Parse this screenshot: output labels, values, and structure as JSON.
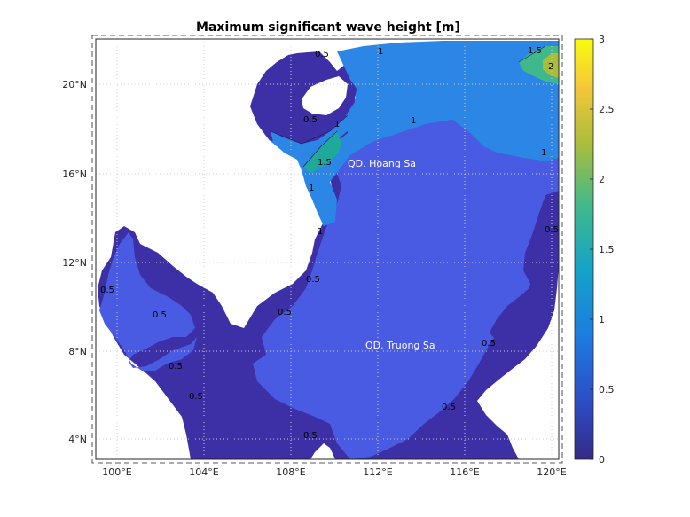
{
  "title": "Maximum significant wave height [m]",
  "map": {
    "lon_ticks": [
      "100°E",
      "104°E",
      "108°E",
      "112°E",
      "116°E",
      "120°E"
    ],
    "lat_ticks": [
      "4°N",
      "8°N",
      "12°N",
      "16°N",
      "20°N"
    ],
    "place_labels": [
      "QD. Hoang Sa",
      "QD. Truong Sa"
    ],
    "contour_labels": [
      "0.5",
      "1",
      "1.5",
      "2"
    ],
    "land_color": "#ffffff",
    "grid": "dotted"
  },
  "colorbar": {
    "ticks": [
      "0",
      "0.5",
      "1",
      "1.5",
      "2",
      "2.5",
      "3"
    ],
    "min": 0,
    "max": 3,
    "colormap": "parula",
    "colors": [
      "#352a87",
      "#2c4ec7",
      "#1d7ee0",
      "#14a3c8",
      "#3fb98c",
      "#a9bd3b",
      "#f3c63a",
      "#f9fb0e"
    ]
  }
}
